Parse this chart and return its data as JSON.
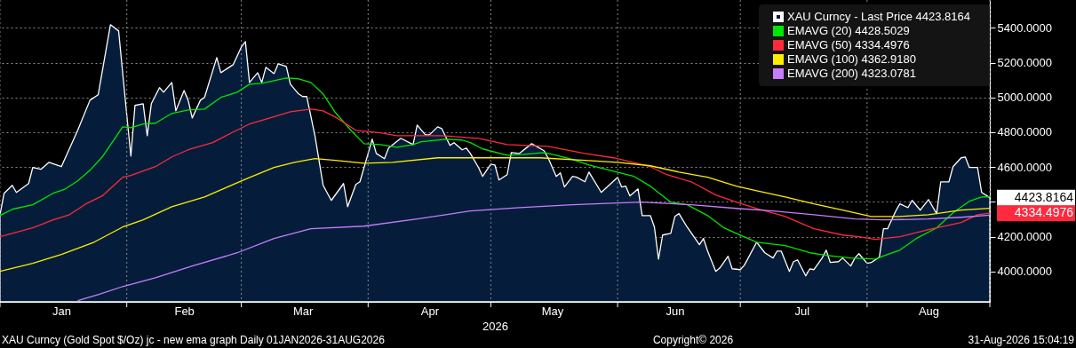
{
  "chart_data": {
    "type": "line",
    "xlabel": "2026",
    "xlim": [
      "2026-01-01",
      "2026-08-31"
    ],
    "xticks": [
      {
        "value": "2026-01-01",
        "label": null
      },
      {
        "value": "2026-01-16",
        "label": "Jan"
      },
      {
        "value": "2026-02-01",
        "label": null
      },
      {
        "value": "2026-02-15",
        "label": "Feb"
      },
      {
        "value": "2026-03-01",
        "label": null
      },
      {
        "value": "2026-03-16",
        "label": "Mar"
      },
      {
        "value": "2026-04-01",
        "label": null
      },
      {
        "value": "2026-04-16",
        "label": "Apr"
      },
      {
        "value": "2026-05-01",
        "label": null
      },
      {
        "value": "2026-05-16",
        "label": "May"
      },
      {
        "value": "2026-06-01",
        "label": null
      },
      {
        "value": "2026-06-15",
        "label": "Jun"
      },
      {
        "value": "2026-07-01",
        "label": null
      },
      {
        "value": "2026-07-16",
        "label": "Jul"
      },
      {
        "value": "2026-08-01",
        "label": null
      },
      {
        "value": "2026-08-16",
        "label": "Aug"
      },
      {
        "value": "2026-08-31",
        "label": null
      }
    ],
    "ylim": [
      3825,
      5560
    ],
    "yticks": [
      {
        "value": 4000,
        "label": "4000.0000"
      },
      {
        "value": 4200,
        "label": "4200.0000"
      },
      {
        "value": 4400,
        "label": null
      },
      {
        "value": 4600,
        "label": "4600.0000"
      },
      {
        "value": 4800,
        "label": "4800.0000"
      },
      {
        "value": 5000,
        "label": "5000.0000"
      },
      {
        "value": 5200,
        "label": "5200.0000"
      },
      {
        "value": 5400,
        "label": "5400.0000"
      }
    ],
    "grid": true,
    "legend": "top right",
    "series": [
      {
        "name": "XAU Curncy - Last Price 4423.8164",
        "type": "area",
        "color": "#ffffff",
        "x": [
          "2026-01-01",
          "2026-01-02",
          "2026-01-04",
          "2026-01-05",
          "2026-01-08",
          "2026-01-09",
          "2026-01-11",
          "2026-01-13",
          "2026-01-16",
          "2026-01-20",
          "2026-01-23",
          "2026-01-25",
          "2026-01-28",
          "2026-01-30",
          "2026-02-01",
          "2026-02-02",
          "2026-02-03",
          "2026-02-05",
          "2026-02-06",
          "2026-02-07",
          "2026-02-09",
          "2026-02-10",
          "2026-02-12",
          "2026-02-13",
          "2026-02-15",
          "2026-02-16",
          "2026-02-17",
          "2026-02-19",
          "2026-02-20",
          "2026-02-23",
          "2026-02-24",
          "2026-02-27",
          "2026-03-01",
          "2026-03-02",
          "2026-03-03",
          "2026-03-05",
          "2026-03-06",
          "2026-03-07",
          "2026-03-09",
          "2026-03-10",
          "2026-03-12",
          "2026-03-13",
          "2026-03-15",
          "2026-03-16",
          "2026-03-17",
          "2026-03-19",
          "2026-03-21",
          "2026-03-23",
          "2026-03-26",
          "2026-03-27",
          "2026-03-29",
          "2026-03-30",
          "2026-04-01",
          "2026-04-02",
          "2026-04-03",
          "2026-04-05",
          "2026-04-06",
          "2026-04-09",
          "2026-04-12",
          "2026-04-13",
          "2026-04-15",
          "2026-04-16",
          "2026-04-18",
          "2026-04-19",
          "2026-04-21",
          "2026-04-22",
          "2026-04-24",
          "2026-04-25",
          "2026-04-26",
          "2026-04-28",
          "2026-04-29",
          "2026-05-01",
          "2026-05-02",
          "2026-05-03",
          "2026-05-05",
          "2026-05-06",
          "2026-05-08",
          "2026-05-11",
          "2026-05-14",
          "2026-05-15",
          "2026-05-17",
          "2026-05-18",
          "2026-05-19",
          "2026-05-21",
          "2026-05-22",
          "2026-05-24",
          "2026-05-25",
          "2026-05-28",
          "2026-06-01",
          "2026-06-02",
          "2026-06-03",
          "2026-06-04",
          "2026-06-06",
          "2026-06-07",
          "2026-06-09",
          "2026-06-10",
          "2026-06-11",
          "2026-06-12",
          "2026-06-14",
          "2026-06-15",
          "2026-06-16",
          "2026-06-18",
          "2026-06-21",
          "2026-06-22",
          "2026-06-23",
          "2026-06-25",
          "2026-06-26",
          "2026-06-28",
          "2026-06-29",
          "2026-07-01",
          "2026-07-02",
          "2026-07-05",
          "2026-07-07",
          "2026-07-09",
          "2026-07-10",
          "2026-07-11",
          "2026-07-13",
          "2026-07-14",
          "2026-07-15",
          "2026-07-17",
          "2026-07-18",
          "2026-07-19",
          "2026-07-21",
          "2026-07-22",
          "2026-07-23",
          "2026-07-25",
          "2026-07-26",
          "2026-07-28",
          "2026-07-29",
          "2026-07-30",
          "2026-08-01",
          "2026-08-02",
          "2026-08-04",
          "2026-08-05",
          "2026-08-06",
          "2026-08-08",
          "2026-08-09",
          "2026-08-11",
          "2026-08-12",
          "2026-08-14",
          "2026-08-16",
          "2026-08-18",
          "2026-08-19",
          "2026-08-21",
          "2026-08-22",
          "2026-08-24",
          "2026-08-25",
          "2026-08-26",
          "2026-08-28",
          "2026-08-29",
          "2026-08-31"
        ],
        "values": [
          4326,
          4449,
          4495,
          4454,
          4505,
          4597,
          4587,
          4627,
          4602,
          4811,
          4984,
          5015,
          5418,
          5382,
          4898,
          4663,
          4954,
          4964,
          4780,
          4964,
          5056,
          5030,
          5086,
          4923,
          5040,
          4984,
          4882,
          4984,
          5000,
          5229,
          5142,
          5188,
          5290,
          5321,
          5086,
          5142,
          5086,
          5173,
          5137,
          5193,
          5178,
          5076,
          5020,
          5005,
          5005,
          4780,
          4495,
          4408,
          4505,
          4372,
          4500,
          4515,
          4678,
          4760,
          4678,
          4648,
          4709,
          4765,
          4729,
          4841,
          4785,
          4785,
          4831,
          4821,
          4724,
          4740,
          4699,
          4709,
          4678,
          4597,
          4546,
          4617,
          4612,
          4525,
          4556,
          4683,
          4678,
          4734,
          4694,
          4653,
          4546,
          4566,
          4485,
          4546,
          4541,
          4515,
          4571,
          4454,
          4541,
          4485,
          4490,
          4434,
          4474,
          4321,
          4321,
          4255,
          4071,
          4209,
          4219,
          4316,
          4332,
          4255,
          4153,
          4189,
          4117,
          4000,
          4020,
          4087,
          4015,
          4010,
          4036,
          4168,
          4107,
          4077,
          4117,
          4117,
          4000,
          4056,
          4066,
          3974,
          4015,
          4010,
          4077,
          4122,
          4051,
          4056,
          4077,
          4031,
          4077,
          4102,
          4046,
          4051,
          4082,
          4245,
          4245,
          4347,
          4388,
          4367,
          4408,
          4352,
          4413,
          4332,
          4515,
          4515,
          4602,
          4653,
          4658,
          4597,
          4597,
          4454,
          4423.8164
        ]
      },
      {
        "name": "EMAVG (20) 4428.5029",
        "color": "#00e600",
        "x": [
          "2026-01-01",
          "2026-01-04",
          "2026-01-09",
          "2026-01-14",
          "2026-01-17",
          "2026-01-20",
          "2026-01-23",
          "2026-01-26",
          "2026-01-31",
          "2026-02-02",
          "2026-02-05",
          "2026-02-08",
          "2026-02-12",
          "2026-02-16",
          "2026-02-20",
          "2026-02-24",
          "2026-02-28",
          "2026-03-03",
          "2026-03-06",
          "2026-03-12",
          "2026-03-15",
          "2026-03-18",
          "2026-03-21",
          "2026-03-24",
          "2026-03-28",
          "2026-03-31",
          "2026-04-04",
          "2026-04-08",
          "2026-04-12",
          "2026-04-14",
          "2026-04-20",
          "2026-04-24",
          "2026-04-26",
          "2026-04-29",
          "2026-05-05",
          "2026-05-09",
          "2026-05-14",
          "2026-05-17",
          "2026-05-21",
          "2026-05-25",
          "2026-05-31",
          "2026-06-05",
          "2026-06-09",
          "2026-06-14",
          "2026-06-18",
          "2026-06-23",
          "2026-06-27",
          "2026-06-30",
          "2026-07-05",
          "2026-07-12",
          "2026-07-18",
          "2026-07-22",
          "2026-07-28",
          "2026-08-03",
          "2026-08-06",
          "2026-08-09",
          "2026-08-13",
          "2026-08-18",
          "2026-08-22",
          "2026-08-26",
          "2026-08-29",
          "2026-08-31"
        ],
        "values": [
          4321,
          4357,
          4383,
          4449,
          4474,
          4520,
          4581,
          4658,
          4831,
          4826,
          4847,
          4852,
          4908,
          4928,
          4933,
          5000,
          5030,
          5076,
          5081,
          5112,
          5107,
          5086,
          5020,
          4913,
          4806,
          4734,
          4729,
          4714,
          4729,
          4745,
          4760,
          4755,
          4740,
          4704,
          4668,
          4673,
          4683,
          4668,
          4643,
          4612,
          4576,
          4546,
          4490,
          4398,
          4383,
          4321,
          4250,
          4219,
          4168,
          4148,
          4107,
          4092,
          4077,
          4071,
          4097,
          4122,
          4189,
          4250,
          4337,
          4403,
          4428,
          4428.5029
        ]
      },
      {
        "name": "EMAVG (50) 4334.4976",
        "color": "#ff2a3c",
        "x": [
          "2026-01-01",
          "2026-01-09",
          "2026-01-14",
          "2026-01-18",
          "2026-01-22",
          "2026-01-26",
          "2026-01-31",
          "2026-02-02",
          "2026-02-08",
          "2026-02-12",
          "2026-02-16",
          "2026-02-22",
          "2026-02-27",
          "2026-03-03",
          "2026-03-08",
          "2026-03-13",
          "2026-03-18",
          "2026-03-21",
          "2026-03-24",
          "2026-03-29",
          "2026-04-04",
          "2026-04-08",
          "2026-04-19",
          "2026-04-28",
          "2026-05-05",
          "2026-05-15",
          "2026-05-24",
          "2026-05-31",
          "2026-06-09",
          "2026-06-13",
          "2026-06-19",
          "2026-06-25",
          "2026-06-30",
          "2026-07-05",
          "2026-07-12",
          "2026-07-19",
          "2026-07-26",
          "2026-07-30",
          "2026-08-03",
          "2026-08-09",
          "2026-08-16",
          "2026-08-24",
          "2026-08-28",
          "2026-08-31"
        ],
        "values": [
          4199,
          4250,
          4296,
          4326,
          4388,
          4434,
          4541,
          4551,
          4602,
          4658,
          4699,
          4740,
          4801,
          4847,
          4882,
          4918,
          4933,
          4923,
          4887,
          4811,
          4796,
          4780,
          4780,
          4765,
          4729,
          4719,
          4678,
          4653,
          4602,
          4556,
          4515,
          4439,
          4398,
          4362,
          4316,
          4245,
          4209,
          4199,
          4184,
          4199,
          4240,
          4281,
          4326,
          4334.4976
        ]
      },
      {
        "name": "EMAVG (100) 4362.9180",
        "color": "#ffee00",
        "x": [
          "2026-01-01",
          "2026-01-09",
          "2026-01-16",
          "2026-01-24",
          "2026-01-31",
          "2026-02-05",
          "2026-02-12",
          "2026-02-20",
          "2026-02-25",
          "2026-03-02",
          "2026-03-09",
          "2026-03-14",
          "2026-03-19",
          "2026-03-24",
          "2026-03-31",
          "2026-04-07",
          "2026-04-18",
          "2026-04-29",
          "2026-05-13",
          "2026-05-24",
          "2026-06-01",
          "2026-06-09",
          "2026-06-16",
          "2026-06-23",
          "2026-06-30",
          "2026-07-05",
          "2026-07-12",
          "2026-07-19",
          "2026-07-26",
          "2026-08-02",
          "2026-08-09",
          "2026-08-16",
          "2026-08-24",
          "2026-08-31"
        ],
        "values": [
          4000,
          4046,
          4097,
          4168,
          4255,
          4296,
          4372,
          4428,
          4479,
          4530,
          4597,
          4627,
          4648,
          4638,
          4622,
          4627,
          4653,
          4653,
          4653,
          4638,
          4627,
          4607,
          4571,
          4541,
          4490,
          4464,
          4428,
          4388,
          4352,
          4316,
          4316,
          4326,
          4352,
          4362.918
        ]
      },
      {
        "name": "EMAVG (200) 4323.0781",
        "color": "#c77dff",
        "x": [
          "2026-01-20",
          "2026-01-25",
          "2026-01-31",
          "2026-02-08",
          "2026-02-17",
          "2026-02-28",
          "2026-03-09",
          "2026-03-18",
          "2026-03-31",
          "2026-04-13",
          "2026-04-26",
          "2026-05-08",
          "2026-05-21",
          "2026-06-01",
          "2026-06-07",
          "2026-06-19",
          "2026-06-30",
          "2026-07-09",
          "2026-07-19",
          "2026-07-29",
          "2026-08-05",
          "2026-08-16",
          "2026-08-24",
          "2026-08-31"
        ],
        "values": [
          3832,
          3867,
          3913,
          3964,
          4031,
          4107,
          4189,
          4245,
          4260,
          4301,
          4347,
          4367,
          4383,
          4393,
          4398,
          4383,
          4362,
          4347,
          4326,
          4301,
          4296,
          4301,
          4311,
          4323.0781
        ]
      }
    ],
    "annotations": [
      {
        "text": "4423.8164",
        "x": "2026-08-31",
        "y": 4423.8164
      },
      {
        "text": "4334.4976",
        "x": "2026-08-31",
        "y": 4334.4976
      },
      "XAU Curncy (Gold Spot  $/Oz) jc - new ema graph Daily 01JAN2026-31AUG2026",
      "Copyright© 2026",
      "31-Aug-2026 15:04:19"
    ]
  }
}
